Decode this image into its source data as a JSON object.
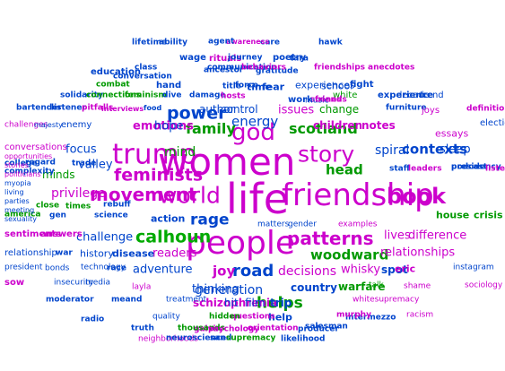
{
  "words": [
    {
      "text": "life",
      "color": "#cc00cc"
    },
    {
      "text": "women",
      "color": "#cc00cc"
    },
    {
      "text": "people",
      "color": "#cc00cc"
    },
    {
      "text": "friendship",
      "color": "#cc00cc"
    },
    {
      "text": "trump",
      "color": "#cc00cc"
    },
    {
      "text": "god",
      "color": "#cc00cc"
    },
    {
      "text": "story",
      "color": "#cc00cc"
    },
    {
      "text": "world",
      "color": "#cc00cc"
    },
    {
      "text": "book",
      "color": "#cc00cc"
    },
    {
      "text": "patterns",
      "color": "#cc00cc"
    },
    {
      "text": "movement",
      "color": "#cc00cc"
    },
    {
      "text": "feminists",
      "color": "#cc00cc"
    },
    {
      "text": "calhoun",
      "color": "#00aa00"
    },
    {
      "text": "power",
      "color": "#0044cc"
    },
    {
      "text": "rage",
      "color": "#0044cc"
    },
    {
      "text": "road",
      "color": "#0044cc"
    },
    {
      "text": "family",
      "color": "#009900"
    },
    {
      "text": "scotland",
      "color": "#009900"
    },
    {
      "text": "helps",
      "color": "#009900"
    },
    {
      "text": "woodward",
      "color": "#009900"
    },
    {
      "text": "mind",
      "color": "#009900"
    },
    {
      "text": "energy",
      "color": "#0044cc"
    },
    {
      "text": "head",
      "color": "#009900"
    },
    {
      "text": "spiral",
      "color": "#0044cc"
    },
    {
      "text": "contexts",
      "color": "#0044cc"
    },
    {
      "text": "sleep",
      "color": "#0044cc"
    },
    {
      "text": "emotions",
      "color": "#cc00cc"
    },
    {
      "text": "hope",
      "color": "#0044cc"
    },
    {
      "text": "issues",
      "color": "#cc00cc"
    },
    {
      "text": "change",
      "color": "#009900"
    },
    {
      "text": "children",
      "color": "#cc00cc"
    },
    {
      "text": "notes",
      "color": "#cc00cc"
    },
    {
      "text": "essays",
      "color": "#cc00cc"
    },
    {
      "text": "focus",
      "color": "#0044cc"
    },
    {
      "text": "valley",
      "color": "#0044cc"
    },
    {
      "text": "minds",
      "color": "#009900"
    },
    {
      "text": "privilege",
      "color": "#cc00cc"
    },
    {
      "text": "challenge",
      "color": "#0044cc"
    },
    {
      "text": "lives",
      "color": "#cc00cc"
    },
    {
      "text": "difference",
      "color": "#cc00cc"
    },
    {
      "text": "decisions",
      "color": "#cc00cc"
    },
    {
      "text": "whisky",
      "color": "#cc00cc"
    },
    {
      "text": "relationships",
      "color": "#cc00cc"
    },
    {
      "text": "generation",
      "color": "#0044cc"
    },
    {
      "text": "joy",
      "color": "#cc00cc"
    },
    {
      "text": "adventure",
      "color": "#0044cc"
    },
    {
      "text": "readers",
      "color": "#cc00cc"
    },
    {
      "text": "history",
      "color": "#0044cc"
    },
    {
      "text": "disease",
      "color": "#0044cc"
    },
    {
      "text": "house",
      "color": "#009900"
    },
    {
      "text": "crisis",
      "color": "#009900"
    },
    {
      "text": "action",
      "color": "#0044cc"
    },
    {
      "text": "thinking",
      "color": "#0044cc"
    },
    {
      "text": "country",
      "color": "#0044cc"
    },
    {
      "text": "warfare",
      "color": "#009900"
    },
    {
      "text": "spot",
      "color": "#0044cc"
    },
    {
      "text": "eric",
      "color": "#cc00cc"
    },
    {
      "text": "schizophrenia",
      "color": "#cc00cc"
    },
    {
      "text": "hit",
      "color": "#0044cc"
    },
    {
      "text": "film",
      "color": "#0044cc"
    },
    {
      "text": "trip",
      "color": "#0044cc"
    },
    {
      "text": "help",
      "color": "#0044cc"
    },
    {
      "text": "fear",
      "color": "#0044cc"
    },
    {
      "text": "author",
      "color": "#0044cc"
    },
    {
      "text": "control",
      "color": "#0044cc"
    },
    {
      "text": "time",
      "color": "#0044cc"
    },
    {
      "text": "experiences",
      "color": "#0044cc"
    },
    {
      "text": "school",
      "color": "#0044cc"
    },
    {
      "text": "fight",
      "color": "#0044cc"
    },
    {
      "text": "work",
      "color": "#0044cc"
    },
    {
      "text": "white",
      "color": "#009900"
    },
    {
      "text": "experience",
      "color": "#0044cc"
    },
    {
      "text": "decade",
      "color": "#0044cc"
    },
    {
      "text": "trend",
      "color": "#0044cc"
    },
    {
      "text": "solidarity",
      "color": "#0044cc"
    },
    {
      "text": "connections",
      "color": "#009900"
    },
    {
      "text": "feminism",
      "color": "#009900"
    },
    {
      "text": "dive",
      "color": "#0044cc"
    },
    {
      "text": "damage",
      "color": "#0044cc"
    },
    {
      "text": "hosts",
      "color": "#cc00cc"
    },
    {
      "text": "scenes",
      "color": "#cc00cc"
    },
    {
      "text": "music",
      "color": "#0044cc"
    },
    {
      "text": "friends",
      "color": "#cc00cc"
    },
    {
      "text": "ancestor",
      "color": "#0044cc"
    },
    {
      "text": "title",
      "color": "#0044cc"
    },
    {
      "text": "gratitude",
      "color": "#0044cc"
    },
    {
      "text": "hand",
      "color": "#0044cc"
    },
    {
      "text": "force",
      "color": "#0044cc"
    },
    {
      "text": "combat",
      "color": "#009900"
    },
    {
      "text": "education",
      "color": "#0044cc"
    },
    {
      "text": "conversation",
      "color": "#0044cc"
    },
    {
      "text": "class",
      "color": "#0044cc"
    },
    {
      "text": "communication",
      "color": "#0044cc"
    },
    {
      "text": "behaviors",
      "color": "#cc00cc"
    },
    {
      "text": "friendships",
      "color": "#cc00cc"
    },
    {
      "text": "anecdotes",
      "color": "#cc00cc"
    },
    {
      "text": "wage",
      "color": "#0044cc"
    },
    {
      "text": "rituals",
      "color": "#cc00cc"
    },
    {
      "text": "journey",
      "color": "#0044cc"
    },
    {
      "text": "poetry",
      "color": "#0044cc"
    },
    {
      "text": "care",
      "color": "#0044cc"
    },
    {
      "text": "awareness",
      "color": "#cc00cc"
    },
    {
      "text": "agent",
      "color": "#0044cc"
    },
    {
      "text": "tara",
      "color": "#0044cc"
    },
    {
      "text": "hawk",
      "color": "#0044cc"
    },
    {
      "text": "ability",
      "color": "#0044cc"
    },
    {
      "text": "lifetime",
      "color": "#0044cc"
    },
    {
      "text": "challenges",
      "color": "#cc00cc"
    },
    {
      "text": "majesty",
      "color": "#0044cc"
    },
    {
      "text": "enemy",
      "color": "#0044cc"
    },
    {
      "text": "bartender",
      "color": "#0044cc"
    },
    {
      "text": "listener",
      "color": "#0044cc"
    },
    {
      "text": "pitfalls",
      "color": "#cc00cc"
    },
    {
      "text": "interviews",
      "color": "#cc00cc"
    },
    {
      "text": "food",
      "color": "#0044cc"
    },
    {
      "text": "furniture",
      "color": "#0044cc"
    },
    {
      "text": "definitions",
      "color": "#cc00cc"
    },
    {
      "text": "joys",
      "color": "#cc00cc"
    },
    {
      "text": "election",
      "color": "#0044cc"
    },
    {
      "text": "conversations",
      "color": "#cc00cc"
    },
    {
      "text": "trade",
      "color": "#0044cc"
    },
    {
      "text": "regard",
      "color": "#0044cc"
    },
    {
      "text": "college",
      "color": "#0044cc"
    },
    {
      "text": "complexity",
      "color": "#0044cc"
    },
    {
      "text": "staff",
      "color": "#0044cc"
    },
    {
      "text": "leaders",
      "color": "#cc00cc"
    },
    {
      "text": "presidency",
      "color": "#0044cc"
    },
    {
      "text": "podcast",
      "color": "#0044cc"
    },
    {
      "text": "listeners",
      "color": "#cc00cc"
    },
    {
      "text": "america",
      "color": "#009900"
    },
    {
      "text": "gen",
      "color": "#0044cc"
    },
    {
      "text": "science",
      "color": "#0044cc"
    },
    {
      "text": "close",
      "color": "#009900"
    },
    {
      "text": "times",
      "color": "#009900"
    },
    {
      "text": "rebuff",
      "color": "#0044cc"
    },
    {
      "text": "sentiments",
      "color": "#cc00cc"
    },
    {
      "text": "answers",
      "color": "#cc00cc"
    },
    {
      "text": "matters",
      "color": "#0044cc"
    },
    {
      "text": "gender",
      "color": "#0044cc"
    },
    {
      "text": "examples",
      "color": "#cc00cc"
    },
    {
      "text": "relationship",
      "color": "#0044cc"
    },
    {
      "text": "war",
      "color": "#0044cc"
    },
    {
      "text": "president",
      "color": "#0044cc"
    },
    {
      "text": "bonds",
      "color": "#0044cc"
    },
    {
      "text": "technology",
      "color": "#0044cc"
    },
    {
      "text": "race",
      "color": "#0044cc"
    },
    {
      "text": "instagram",
      "color": "#0044cc"
    },
    {
      "text": "sow",
      "color": "#cc00cc"
    },
    {
      "text": "insecurity",
      "color": "#0044cc"
    },
    {
      "text": "media",
      "color": "#0044cc"
    },
    {
      "text": "layla",
      "color": "#cc00cc"
    },
    {
      "text": "talk",
      "color": "#009900"
    },
    {
      "text": "shame",
      "color": "#cc00cc"
    },
    {
      "text": "sociology",
      "color": "#cc00cc"
    },
    {
      "text": "moderator",
      "color": "#0044cc"
    },
    {
      "text": "meand",
      "color": "#0044cc"
    },
    {
      "text": "treatment",
      "color": "#0044cc"
    },
    {
      "text": "questions",
      "color": "#cc00cc"
    },
    {
      "text": "hidden",
      "color": "#009900"
    },
    {
      "text": "whitesupremacy",
      "color": "#cc00cc"
    },
    {
      "text": "salesman",
      "color": "#0044cc"
    },
    {
      "text": "intermezzo",
      "color": "#0044cc"
    },
    {
      "text": "murphy",
      "color": "#cc00cc"
    },
    {
      "text": "racism",
      "color": "#cc00cc"
    },
    {
      "text": "radio",
      "color": "#0044cc"
    },
    {
      "text": "quality",
      "color": "#0044cc"
    },
    {
      "text": "galvin",
      "color": "#cc00cc"
    },
    {
      "text": "truth",
      "color": "#0044cc"
    },
    {
      "text": "thousands",
      "color": "#009900"
    },
    {
      "text": "psychology",
      "color": "#cc00cc"
    },
    {
      "text": "orientation",
      "color": "#cc00cc"
    },
    {
      "text": "producer",
      "color": "#0044cc"
    },
    {
      "text": "neighborhoods",
      "color": "#cc00cc"
    },
    {
      "text": "neuroscience",
      "color": "#0044cc"
    },
    {
      "text": "sand",
      "color": "#0044cc"
    },
    {
      "text": "supremacy",
      "color": "#009900"
    },
    {
      "text": "likelihood",
      "color": "#0044cc"
    },
    {
      "text": "opportunities",
      "color": "#cc00cc"
    },
    {
      "text": "stories",
      "color": "#cc00cc"
    },
    {
      "text": "politicians",
      "color": "#cc00cc"
    },
    {
      "text": "myopia",
      "color": "#0044cc"
    },
    {
      "text": "living",
      "color": "#0044cc"
    },
    {
      "text": "parties",
      "color": "#0044cc"
    },
    {
      "text": "meeting",
      "color": "#0044cc"
    },
    {
      "text": "sexuality",
      "color": "#0044cc"
    }
  ]
}
